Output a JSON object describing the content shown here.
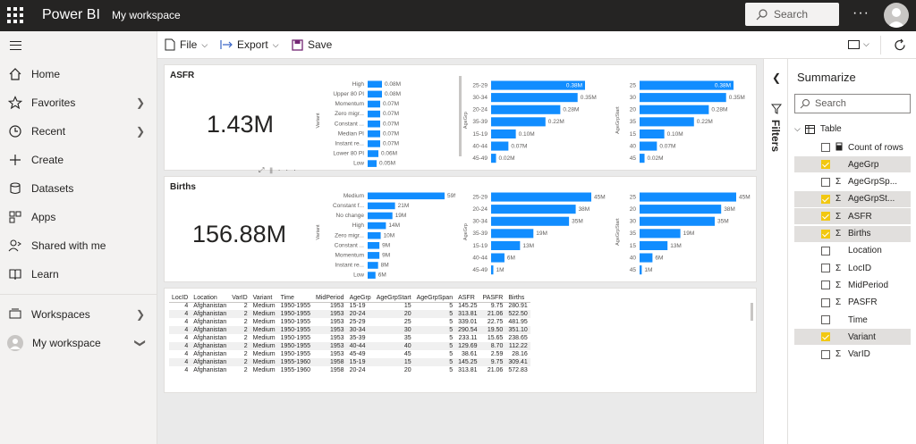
{
  "topbar": {
    "brand": "Power BI",
    "workspace": "My workspace",
    "search_placeholder": "Search",
    "more": "···"
  },
  "nav": {
    "items": [
      {
        "label": "Home",
        "icon": "home-icon"
      },
      {
        "label": "Favorites",
        "icon": "star-icon"
      },
      {
        "label": "Recent",
        "icon": "clock-icon"
      },
      {
        "label": "Create",
        "icon": "plus-icon"
      },
      {
        "label": "Datasets",
        "icon": "database-icon"
      },
      {
        "label": "Apps",
        "icon": "apps-icon"
      },
      {
        "label": "Shared with me",
        "icon": "shared-icon"
      },
      {
        "label": "Learn",
        "icon": "book-icon"
      },
      {
        "label": "Workspaces",
        "icon": "workspaces-icon"
      },
      {
        "label": "My workspace",
        "icon": "avatar-icon"
      }
    ]
  },
  "toolbar": {
    "file": "File",
    "export": "Export",
    "save": "Save"
  },
  "cards": {
    "asfr": {
      "title": "ASFR",
      "value": "1.43M"
    },
    "births": {
      "title": "Births",
      "value": "156.88M"
    }
  },
  "chart_data": [
    {
      "type": "bar",
      "ylabel": "Variant",
      "categories": [
        "High",
        "Upper 80 PI",
        "Momentum",
        "Zero migr...",
        "Constant ...",
        "Median PI",
        "Instant re...",
        "Lower 80 PI",
        "Low"
      ],
      "values": [
        0.08,
        0.08,
        0.07,
        0.07,
        0.07,
        0.07,
        0.07,
        0.06,
        0.05
      ],
      "labels": [
        "0.08M",
        "0.08M",
        "0.07M",
        "0.07M",
        "0.07M",
        "0.07M",
        "0.07M",
        "0.06M",
        "0.05M"
      ]
    },
    {
      "type": "bar",
      "ylabel": "AgeGrp",
      "categories": [
        "25-29",
        "30-34",
        "20-24",
        "35-39",
        "15-19",
        "40-44",
        "45-49"
      ],
      "values": [
        0.38,
        0.35,
        0.28,
        0.22,
        0.1,
        0.07,
        0.02
      ],
      "labels": [
        "0.38M",
        "0.35M",
        "0.28M",
        "0.22M",
        "0.10M",
        "0.07M",
        "0.02M"
      ]
    },
    {
      "type": "bar",
      "ylabel": "AgeGrpStart",
      "categories": [
        "25",
        "30",
        "20",
        "35",
        "15",
        "40",
        "45"
      ],
      "values": [
        0.38,
        0.35,
        0.28,
        0.22,
        0.1,
        0.07,
        0.02
      ],
      "labels": [
        "0.38M",
        "0.35M",
        "0.28M",
        "0.22M",
        "0.10M",
        "0.07M",
        "0.02M"
      ]
    },
    {
      "type": "bar",
      "ylabel": "Variant",
      "categories": [
        "Medium",
        "Constant f...",
        "No change",
        "High",
        "Zero migr...",
        "Constant ...",
        "Momentum",
        "Instant re...",
        "Low"
      ],
      "values": [
        59,
        21,
        19,
        14,
        10,
        9,
        9,
        8,
        6
      ],
      "labels": [
        "59M",
        "21M",
        "19M",
        "14M",
        "10M",
        "9M",
        "9M",
        "8M",
        "6M"
      ]
    },
    {
      "type": "bar",
      "ylabel": "AgeGrp",
      "categories": [
        "25-29",
        "20-24",
        "30-34",
        "35-39",
        "15-19",
        "40-44",
        "45-49"
      ],
      "values": [
        45,
        38,
        35,
        19,
        13,
        6,
        1
      ],
      "labels": [
        "45M",
        "38M",
        "35M",
        "19M",
        "13M",
        "6M",
        "1M"
      ]
    },
    {
      "type": "bar",
      "ylabel": "AgeGrpStart",
      "categories": [
        "25",
        "20",
        "30",
        "35",
        "15",
        "40",
        "45"
      ],
      "values": [
        45,
        38,
        35,
        19,
        13,
        6,
        1
      ],
      "labels": [
        "45M",
        "38M",
        "35M",
        "19M",
        "13M",
        "6M",
        "1M"
      ]
    }
  ],
  "table": {
    "headers": [
      "LocID",
      "Location",
      "VarID",
      "Variant",
      "Time",
      "MidPeriod",
      "AgeGrp",
      "AgeGrpStart",
      "AgeGrpSpan",
      "ASFR",
      "PASFR",
      "Births"
    ],
    "rows": [
      [
        "4",
        "Afghanistan",
        "2",
        "Medium",
        "1950-1955",
        "1953",
        "15-19",
        "15",
        "5",
        "145.25",
        "9.75",
        "280.91"
      ],
      [
        "4",
        "Afghanistan",
        "2",
        "Medium",
        "1950-1955",
        "1953",
        "20-24",
        "20",
        "5",
        "313.81",
        "21.06",
        "522.50"
      ],
      [
        "4",
        "Afghanistan",
        "2",
        "Medium",
        "1950-1955",
        "1953",
        "25-29",
        "25",
        "5",
        "339.01",
        "22.75",
        "481.95"
      ],
      [
        "4",
        "Afghanistan",
        "2",
        "Medium",
        "1950-1955",
        "1953",
        "30-34",
        "30",
        "5",
        "290.54",
        "19.50",
        "351.10"
      ],
      [
        "4",
        "Afghanistan",
        "2",
        "Medium",
        "1950-1955",
        "1953",
        "35-39",
        "35",
        "5",
        "233.11",
        "15.65",
        "238.65"
      ],
      [
        "4",
        "Afghanistan",
        "2",
        "Medium",
        "1950-1955",
        "1953",
        "40-44",
        "40",
        "5",
        "129.69",
        "8.70",
        "112.22"
      ],
      [
        "4",
        "Afghanistan",
        "2",
        "Medium",
        "1950-1955",
        "1953",
        "45-49",
        "45",
        "5",
        "38.61",
        "2.59",
        "28.16"
      ],
      [
        "4",
        "Afghanistan",
        "2",
        "Medium",
        "1955-1960",
        "1958",
        "15-19",
        "15",
        "5",
        "145.25",
        "9.75",
        "309.41"
      ],
      [
        "4",
        "Afghanistan",
        "2",
        "Medium",
        "1955-1960",
        "1958",
        "20-24",
        "20",
        "5",
        "313.81",
        "21.06",
        "572.83"
      ]
    ]
  },
  "filters": {
    "label": "Filters"
  },
  "summarize": {
    "title": "Summarize",
    "search_placeholder": "Search",
    "table_name": "Table",
    "fields": [
      {
        "name": "Count of rows",
        "sigma": "",
        "checked": false,
        "icon": "calculator"
      },
      {
        "name": "AgeGrp",
        "sigma": "",
        "checked": true
      },
      {
        "name": "AgeGrpSp...",
        "sigma": "Σ",
        "checked": false
      },
      {
        "name": "AgeGrpSt...",
        "sigma": "Σ",
        "checked": true
      },
      {
        "name": "ASFR",
        "sigma": "Σ",
        "checked": true
      },
      {
        "name": "Births",
        "sigma": "Σ",
        "checked": true
      },
      {
        "name": "Location",
        "sigma": "",
        "checked": false
      },
      {
        "name": "LocID",
        "sigma": "Σ",
        "checked": false
      },
      {
        "name": "MidPeriod",
        "sigma": "Σ",
        "checked": false
      },
      {
        "name": "PASFR",
        "sigma": "Σ",
        "checked": false
      },
      {
        "name": "Time",
        "sigma": "",
        "checked": false
      },
      {
        "name": "Variant",
        "sigma": "",
        "checked": true
      },
      {
        "name": "VarID",
        "sigma": "Σ",
        "checked": false
      }
    ]
  },
  "colors": {
    "bar": "#118dff",
    "accent": "#f2c811",
    "topbar": "#252423"
  }
}
